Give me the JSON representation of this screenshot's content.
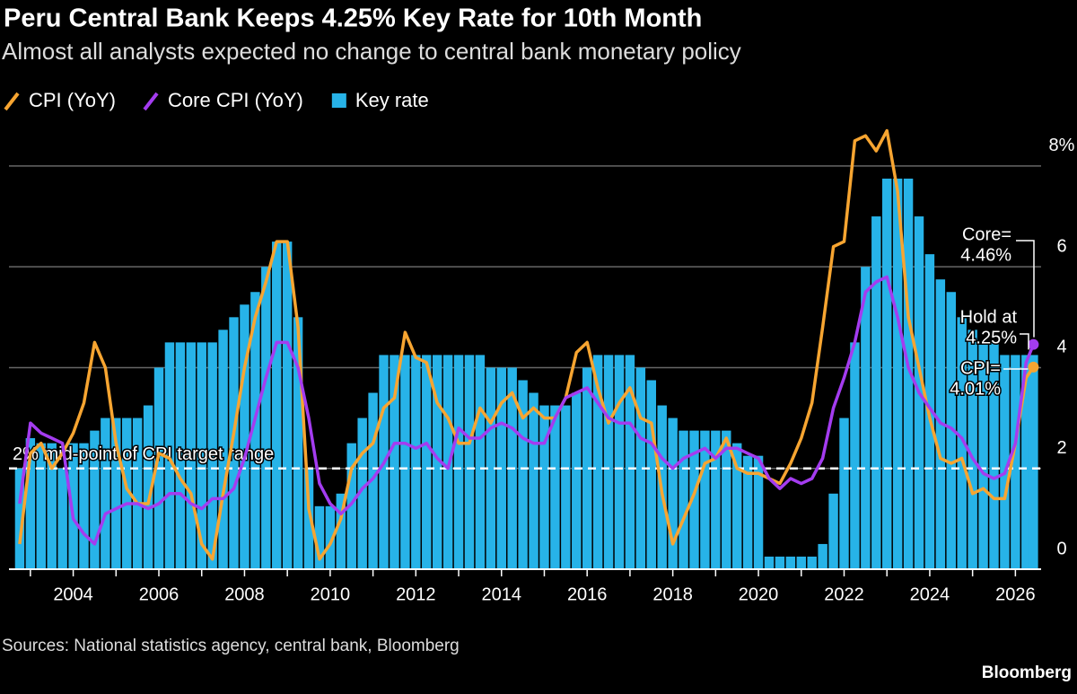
{
  "chart_data": {
    "type": "combo",
    "title": "Peru Central Bank Keeps 4.25% Key Rate for 10th Month",
    "subtitle": "Almost all analysts expected no change to central bank monetary policy",
    "source": "Sources: National statistics agency, central bank, Bloomberg",
    "brand": "Bloomberg",
    "x": [
      2002.75,
      2003.0,
      2003.25,
      2003.5,
      2003.75,
      2004.0,
      2004.25,
      2004.5,
      2004.75,
      2005.0,
      2005.25,
      2005.5,
      2005.75,
      2006.0,
      2006.25,
      2006.5,
      2006.75,
      2007.0,
      2007.25,
      2007.5,
      2007.75,
      2008.0,
      2008.25,
      2008.5,
      2008.75,
      2009.0,
      2009.25,
      2009.5,
      2009.75,
      2010.0,
      2010.25,
      2010.5,
      2010.75,
      2011.0,
      2011.25,
      2011.5,
      2011.75,
      2012.0,
      2012.25,
      2012.5,
      2012.75,
      2013.0,
      2013.25,
      2013.5,
      2013.75,
      2014.0,
      2014.25,
      2014.5,
      2014.75,
      2015.0,
      2015.25,
      2015.5,
      2015.75,
      2016.0,
      2016.25,
      2016.5,
      2016.75,
      2017.0,
      2017.25,
      2017.5,
      2017.75,
      2018.0,
      2018.25,
      2018.5,
      2018.75,
      2019.0,
      2019.25,
      2019.5,
      2019.75,
      2020.0,
      2020.25,
      2020.5,
      2020.75,
      2021.0,
      2021.25,
      2021.5,
      2021.75,
      2022.0,
      2022.25,
      2022.5,
      2022.75,
      2023.0,
      2023.25,
      2023.5,
      2023.75,
      2024.0,
      2024.25,
      2024.5,
      2024.75,
      2025.0,
      2025.25,
      2025.5,
      2025.75,
      2026.0,
      2026.25,
      2026.42
    ],
    "series": [
      {
        "name": "CPI (YoY)",
        "type": "line",
        "color": "#f7a531",
        "values": [
          0.5,
          2.3,
          2.5,
          2.0,
          2.3,
          2.7,
          3.3,
          4.5,
          4.0,
          2.5,
          1.6,
          1.3,
          1.3,
          2.3,
          2.2,
          1.8,
          1.5,
          0.5,
          0.2,
          1.5,
          2.7,
          4.0,
          5.0,
          5.7,
          6.5,
          6.5,
          4.8,
          1.2,
          0.2,
          0.5,
          1.0,
          2.0,
          2.3,
          2.5,
          3.2,
          3.4,
          4.7,
          4.2,
          4.1,
          3.3,
          3.0,
          2.5,
          2.5,
          3.2,
          2.9,
          3.3,
          3.5,
          3.0,
          3.2,
          3.0,
          3.0,
          3.4,
          4.3,
          4.5,
          3.6,
          2.9,
          3.3,
          3.6,
          3.0,
          2.9,
          1.5,
          0.5,
          1.0,
          1.5,
          2.1,
          2.2,
          2.6,
          2.0,
          1.9,
          1.9,
          1.8,
          1.7,
          2.1,
          2.6,
          3.3,
          4.8,
          6.4,
          6.5,
          8.5,
          8.6,
          8.3,
          8.7,
          7.5,
          5.0,
          4.0,
          3.0,
          2.2,
          2.1,
          2.2,
          1.5,
          1.6,
          1.4,
          1.4,
          2.5,
          3.8,
          4.01
        ]
      },
      {
        "name": "Core CPI (YoY)",
        "type": "line",
        "color": "#a43cf0",
        "values": [
          1.3,
          2.9,
          2.7,
          2.6,
          2.5,
          1.0,
          0.7,
          0.5,
          1.1,
          1.2,
          1.3,
          1.3,
          1.2,
          1.3,
          1.5,
          1.5,
          1.3,
          1.2,
          1.4,
          1.4,
          1.6,
          2.2,
          3.0,
          3.8,
          4.5,
          4.5,
          4.0,
          3.0,
          1.7,
          1.3,
          1.1,
          1.3,
          1.6,
          1.8,
          2.1,
          2.5,
          2.5,
          2.4,
          2.5,
          2.2,
          2.0,
          2.8,
          2.6,
          2.6,
          2.8,
          2.9,
          2.8,
          2.6,
          2.5,
          2.5,
          3.0,
          3.4,
          3.5,
          3.6,
          3.3,
          3.0,
          2.9,
          2.9,
          2.6,
          2.5,
          2.2,
          2.0,
          2.2,
          2.3,
          2.4,
          2.2,
          2.4,
          2.4,
          2.3,
          2.2,
          1.8,
          1.6,
          1.8,
          1.7,
          1.8,
          2.2,
          3.2,
          3.8,
          4.5,
          5.5,
          5.7,
          5.8,
          5.0,
          4.0,
          3.5,
          3.2,
          2.9,
          2.8,
          2.6,
          2.2,
          1.9,
          1.8,
          1.9,
          2.5,
          4.1,
          4.46
        ]
      },
      {
        "name": "Key rate",
        "type": "bar",
        "color": "#27b3e8",
        "values": [
          2.0,
          2.6,
          2.5,
          2.5,
          2.0,
          2.5,
          2.5,
          2.75,
          3.0,
          3.0,
          3.0,
          3.0,
          3.25,
          4.0,
          4.5,
          4.5,
          4.5,
          4.5,
          4.5,
          4.75,
          5.0,
          5.25,
          5.5,
          6.0,
          6.5,
          6.5,
          5.0,
          2.0,
          1.25,
          1.25,
          1.5,
          2.5,
          3.0,
          3.5,
          4.25,
          4.25,
          4.25,
          4.25,
          4.25,
          4.25,
          4.25,
          4.25,
          4.25,
          4.25,
          4.0,
          4.0,
          4.0,
          3.75,
          3.5,
          3.25,
          3.25,
          3.25,
          3.5,
          4.0,
          4.25,
          4.25,
          4.25,
          4.25,
          4.0,
          3.75,
          3.25,
          3.0,
          2.75,
          2.75,
          2.75,
          2.75,
          2.75,
          2.5,
          2.25,
          2.25,
          0.25,
          0.25,
          0.25,
          0.25,
          0.25,
          0.5,
          1.5,
          3.0,
          4.5,
          6.0,
          7.0,
          7.75,
          7.75,
          7.75,
          7.0,
          6.25,
          5.75,
          5.5,
          5.0,
          4.75,
          4.5,
          4.5,
          4.25,
          4.25,
          4.25,
          4.25
        ]
      }
    ],
    "xlim": [
      2002.5,
      2026.6
    ],
    "xticks": [
      2004,
      2006,
      2008,
      2010,
      2012,
      2014,
      2016,
      2018,
      2020,
      2022,
      2024,
      2026
    ],
    "ylim": [
      0,
      8.8
    ],
    "yticks": [
      0,
      2,
      4,
      6,
      {
        "value": 8,
        "label": "8%"
      }
    ],
    "grid": true,
    "reference_line": {
      "value": 2,
      "label": "2% mid-point of CPI target range"
    },
    "annotations": [
      {
        "lines": [
          "Core=",
          "4.46%"
        ]
      },
      {
        "lines": [
          "Hold at",
          "4.25%"
        ]
      },
      {
        "lines": [
          "CPI=",
          "4.01%"
        ]
      }
    ]
  }
}
